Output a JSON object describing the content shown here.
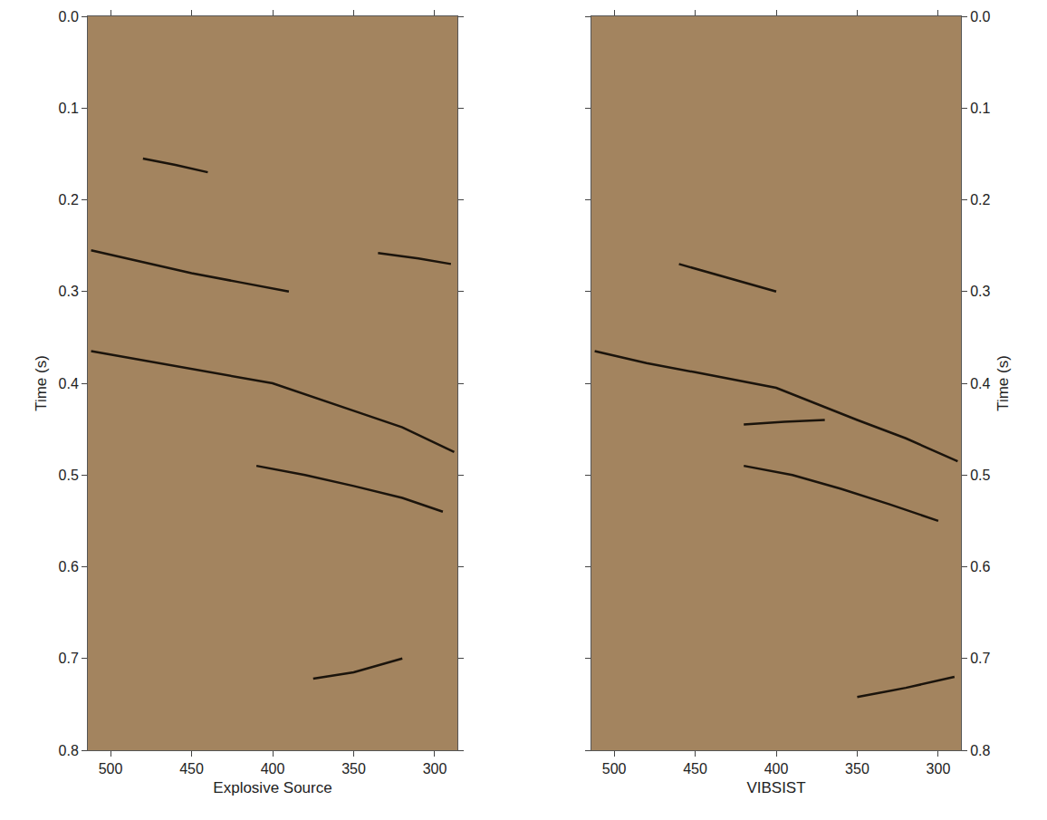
{
  "chart_data": [
    {
      "type": "line",
      "xlabel": "Explosive Source",
      "ylabel": "Time (s)",
      "color": "#1b140c",
      "grid": false,
      "xlim": [
        514,
        286
      ],
      "xticks": [
        500,
        450,
        400,
        350,
        300
      ],
      "ylim": [
        0.8,
        0
      ],
      "yticks": [
        {
          "value": 0,
          "label": "0.0"
        },
        0.1,
        0.2,
        0.3,
        0.4,
        0.5,
        0.6,
        0.7,
        0.8
      ],
      "series": [
        {
          "x": [
            480,
            460,
            440
          ],
          "values": [
            0.155,
            0.162,
            0.17
          ]
        },
        {
          "x": [
            512,
            480,
            450,
            420,
            390
          ],
          "values": [
            0.255,
            0.268,
            0.28,
            0.29,
            0.3
          ]
        },
        {
          "x": [
            335,
            310,
            290
          ],
          "values": [
            0.258,
            0.264,
            0.27
          ]
        },
        {
          "x": [
            512,
            480,
            450,
            400,
            350,
            320,
            288
          ],
          "values": [
            0.365,
            0.375,
            0.385,
            0.4,
            0.43,
            0.448,
            0.475
          ]
        },
        {
          "x": [
            410,
            380,
            350,
            320,
            295
          ],
          "values": [
            0.49,
            0.5,
            0.512,
            0.525,
            0.54
          ]
        },
        {
          "x": [
            375,
            350,
            320
          ],
          "values": [
            0.722,
            0.715,
            0.7
          ]
        }
      ]
    },
    {
      "type": "line",
      "xlabel": "VIBSIST",
      "ylabel": "Time (s)",
      "color": "#1b140c",
      "grid": false,
      "xlim": [
        514,
        286
      ],
      "xticks": [
        500,
        450,
        400,
        350,
        300
      ],
      "ylim": [
        0.8,
        0
      ],
      "yticks": [
        {
          "value": 0,
          "label": "0.0"
        },
        0.1,
        0.2,
        0.3,
        0.4,
        0.5,
        0.6,
        0.7,
        0.8
      ],
      "series": [
        {
          "x": [
            460,
            430,
            400
          ],
          "values": [
            0.27,
            0.285,
            0.3
          ]
        },
        {
          "x": [
            512,
            480,
            450,
            400,
            350,
            320,
            288
          ],
          "values": [
            0.365,
            0.378,
            0.388,
            0.405,
            0.44,
            0.46,
            0.485
          ]
        },
        {
          "x": [
            420,
            395,
            370
          ],
          "values": [
            0.445,
            0.442,
            0.44
          ]
        },
        {
          "x": [
            420,
            390,
            360,
            330,
            300
          ],
          "values": [
            0.49,
            0.5,
            0.515,
            0.532,
            0.55
          ]
        },
        {
          "x": [
            350,
            320,
            290
          ],
          "values": [
            0.742,
            0.732,
            0.72
          ]
        }
      ]
    }
  ]
}
